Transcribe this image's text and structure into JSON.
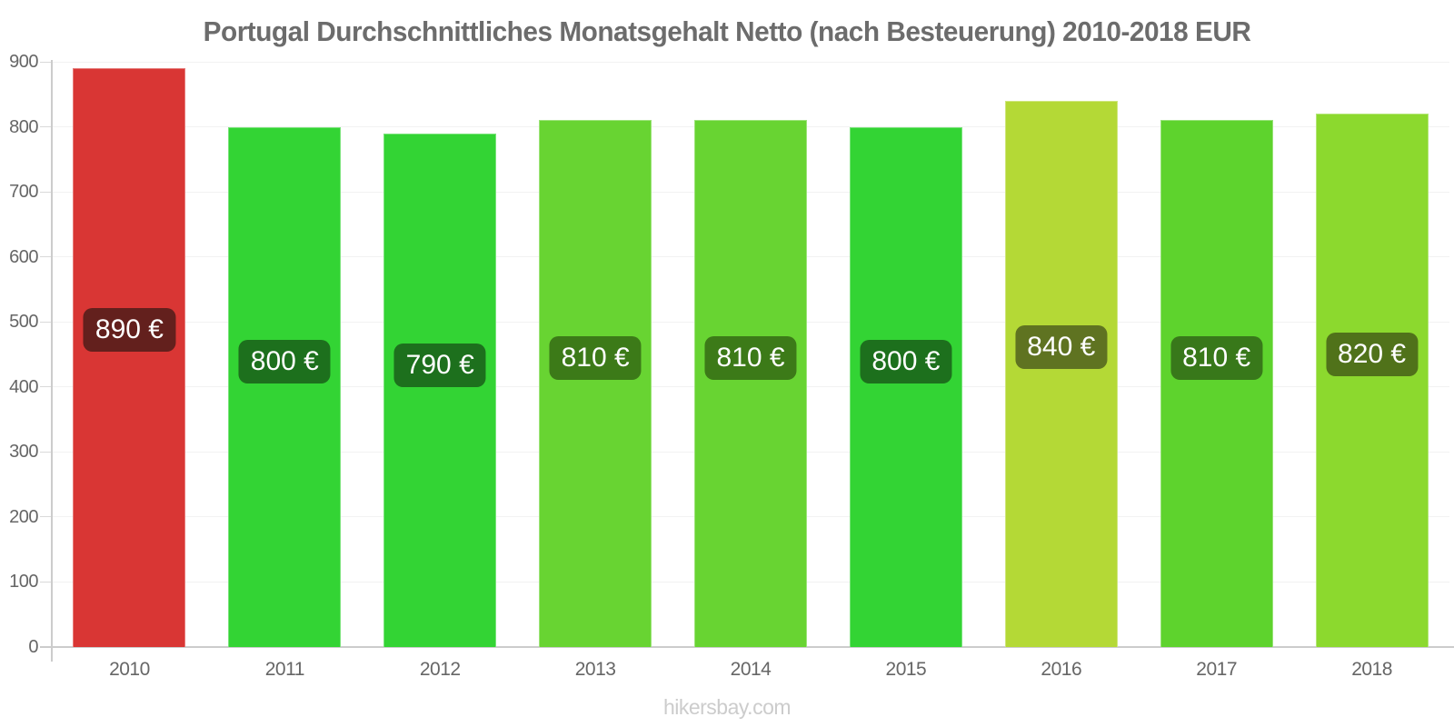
{
  "title": "Portugal Durchschnittliches Monatsgehalt Netto (nach Besteuerung) 2010-2018 EUR",
  "footer": "hikersbay.com",
  "chart_data": {
    "type": "bar",
    "title": "Portugal Durchschnittliches Monatsgehalt Netto (nach Besteuerung) 2010-2018 EUR",
    "categories": [
      "2010",
      "2011",
      "2012",
      "2013",
      "2014",
      "2015",
      "2016",
      "2017",
      "2018"
    ],
    "values": [
      890,
      800,
      790,
      810,
      810,
      800,
      840,
      810,
      820
    ],
    "bar_labels": [
      "890 €",
      "800 €",
      "790 €",
      "810 €",
      "810 €",
      "800 €",
      "840 €",
      "810 €",
      "820 €"
    ],
    "bar_colors": [
      "#d93634",
      "#33d434",
      "#33d434",
      "#68d432",
      "#68d432",
      "#33d434",
      "#b4d936",
      "#5ed32d",
      "#8cd92e"
    ],
    "label_bg_colors": [
      "#63201d",
      "#1d701d",
      "#1d701d",
      "#3c7a18",
      "#3c7a18",
      "#1d701d",
      "#5f7321",
      "#38781a",
      "#50721a"
    ],
    "xlabel": "",
    "ylabel": "",
    "ylim": [
      0,
      900
    ],
    "yticks": [
      0,
      100,
      200,
      300,
      400,
      500,
      600,
      700,
      800,
      900
    ],
    "grid": true,
    "legend": false,
    "axis_color": "#cccccc",
    "tick_color": "#d9d9d9",
    "gridline_color": "#f2f2f2",
    "text_color": "#666666",
    "value_label_text_color": "#ffffff"
  }
}
